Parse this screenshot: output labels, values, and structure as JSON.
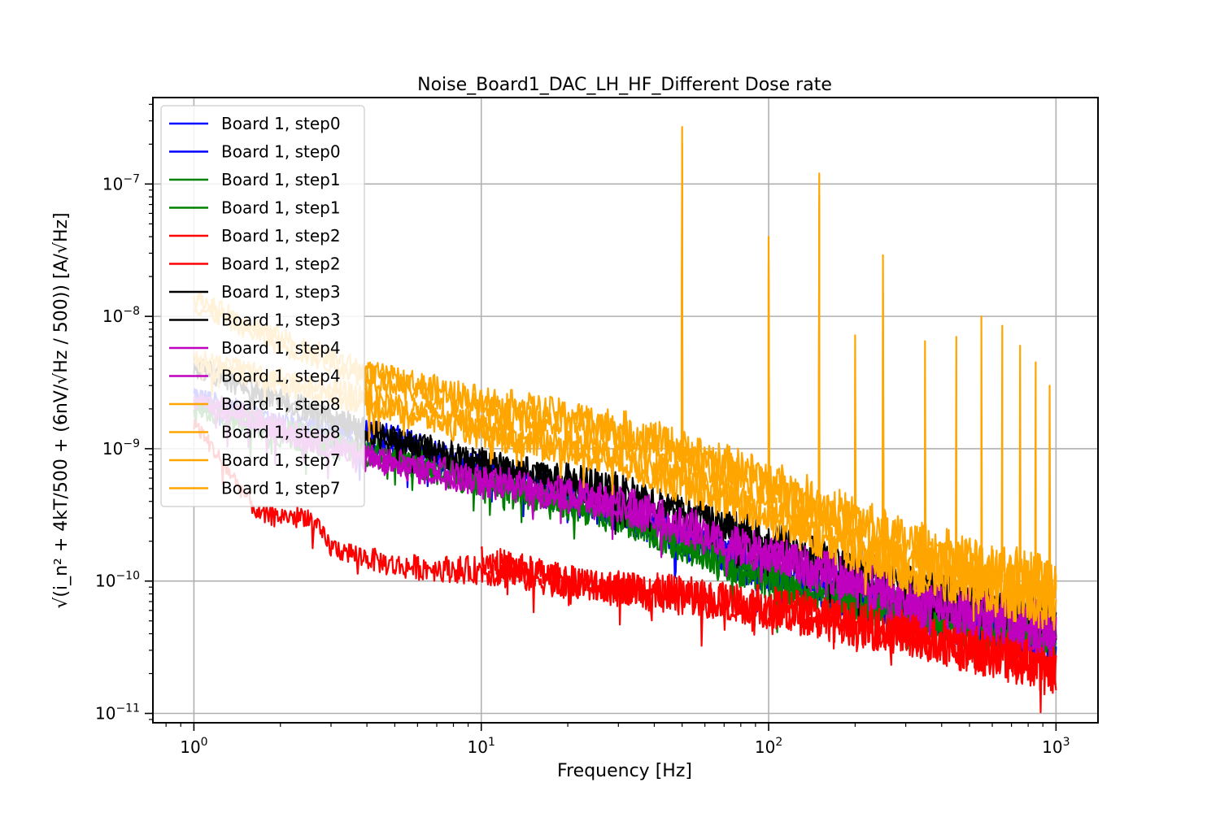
{
  "chart_data": {
    "type": "line",
    "title": "Noise_Board1_DAC_LH_HF_Different Dose rate",
    "xlabel": "Frequency [Hz]",
    "ylabel": "√(i_n² + 4kT/500 + (6nV/√Hz / 500)) [A/√Hz]",
    "x_scale": "log",
    "y_scale": "log",
    "xlim": [
      0.72,
      1400
    ],
    "ylim": [
      8.5e-12,
      4.5e-07
    ],
    "x_ticks": [
      {
        "value": 1,
        "base": "10",
        "exp": "0"
      },
      {
        "value": 10,
        "base": "10",
        "exp": "1"
      },
      {
        "value": 100,
        "base": "10",
        "exp": "2"
      },
      {
        "value": 1000,
        "base": "10",
        "exp": "3"
      }
    ],
    "y_ticks": [
      {
        "value": 1e-11,
        "base": "10",
        "exp": "−11"
      },
      {
        "value": 1e-10,
        "base": "10",
        "exp": "−10"
      },
      {
        "value": 1e-09,
        "base": "10",
        "exp": "−9"
      },
      {
        "value": 1e-08,
        "base": "10",
        "exp": "−8"
      },
      {
        "value": 1e-07,
        "base": "10",
        "exp": "−7"
      }
    ],
    "grid": true,
    "legend_position": "upper-left",
    "series": [
      {
        "name": "Board 1, step0",
        "color": "#0000ff",
        "levels": [
          [
            1,
            2.2e-09
          ],
          [
            2,
            1.4e-09
          ],
          [
            4,
            1.1e-09
          ],
          [
            10,
            6.5e-10
          ],
          [
            30,
            3.2e-10
          ],
          [
            100,
            1.1e-10
          ],
          [
            300,
            6e-11
          ],
          [
            1000,
            3.8e-11
          ]
        ],
        "spikes": []
      },
      {
        "name": "Board 1, step0",
        "color": "#0000ff",
        "levels": [
          [
            1,
            2.6e-09
          ],
          [
            2,
            1.6e-09
          ],
          [
            4.7,
            1.3e-09
          ],
          [
            10,
            7e-10
          ],
          [
            30,
            3.4e-10
          ],
          [
            100,
            1.2e-10
          ],
          [
            300,
            6.2e-11
          ],
          [
            1000,
            3.5e-11
          ]
        ],
        "spikes": []
      },
      {
        "name": "Board 1, step1",
        "color": "#008000",
        "levels": [
          [
            1,
            2e-09
          ],
          [
            2,
            1.2e-09
          ],
          [
            4,
            9e-10
          ],
          [
            10,
            5.5e-10
          ],
          [
            30,
            3e-10
          ],
          [
            100,
            1e-10
          ],
          [
            300,
            5.8e-11
          ],
          [
            1000,
            3.6e-11
          ]
        ],
        "spikes": []
      },
      {
        "name": "Board 1, step1",
        "color": "#008000",
        "levels": [
          [
            1,
            2.3e-09
          ],
          [
            2,
            1.5e-09
          ],
          [
            4,
            1e-09
          ],
          [
            10,
            6e-10
          ],
          [
            30,
            3.1e-10
          ],
          [
            100,
            1.05e-10
          ],
          [
            300,
            6e-11
          ],
          [
            1000,
            3.7e-11
          ]
        ],
        "spikes": []
      },
      {
        "name": "Board 1, step2",
        "color": "#ff0000",
        "levels": [
          [
            1,
            1.6e-09
          ],
          [
            1.7,
            3.1e-10
          ],
          [
            2.5,
            3.1e-10
          ],
          [
            3,
            1.8e-10
          ],
          [
            5,
            1.3e-10
          ],
          [
            10,
            1.2e-10
          ],
          [
            30,
            8.5e-11
          ],
          [
            100,
            6.5e-11
          ],
          [
            300,
            4.2e-11
          ],
          [
            1000,
            2.3e-11
          ]
        ],
        "spikes": []
      },
      {
        "name": "Board 1, step2",
        "color": "#ff0000",
        "levels": [
          [
            10,
            1.5e-10
          ],
          [
            20,
            1e-10
          ],
          [
            50,
            8e-11
          ],
          [
            100,
            6.2e-11
          ],
          [
            300,
            4e-11
          ],
          [
            1000,
            2.2e-11
          ]
        ],
        "spikes": []
      },
      {
        "name": "Board 1, step3",
        "color": "#000000",
        "levels": [
          [
            1,
            4.5e-09
          ],
          [
            2,
            2.5e-09
          ],
          [
            4,
            1.4e-09
          ],
          [
            10,
            8e-10
          ],
          [
            30,
            5e-10
          ],
          [
            100,
            2e-10
          ],
          [
            300,
            9e-11
          ],
          [
            1000,
            5.5e-11
          ]
        ],
        "spikes": []
      },
      {
        "name": "Board 1, step3",
        "color": "#000000",
        "levels": [
          [
            1,
            4e-09
          ],
          [
            2,
            2.2e-09
          ],
          [
            4,
            1.3e-09
          ],
          [
            10,
            7.5e-10
          ],
          [
            30,
            4.6e-10
          ],
          [
            100,
            1.8e-10
          ],
          [
            300,
            8.5e-11
          ],
          [
            1000,
            5e-11
          ]
        ],
        "spikes": []
      },
      {
        "name": "Board 1, step4",
        "color": "#bf00bf",
        "levels": [
          [
            1,
            2.6e-09
          ],
          [
            2,
            1.5e-09
          ],
          [
            4,
            9e-10
          ],
          [
            10,
            6e-10
          ],
          [
            30,
            4e-10
          ],
          [
            100,
            1.6e-10
          ],
          [
            300,
            7.5e-11
          ],
          [
            1000,
            4.5e-11
          ]
        ],
        "spikes": []
      },
      {
        "name": "Board 1, step4",
        "color": "#bf00bf",
        "levels": [
          [
            1,
            2.3e-09
          ],
          [
            2,
            1.3e-09
          ],
          [
            4,
            8e-10
          ],
          [
            10,
            5.5e-10
          ],
          [
            30,
            3.6e-10
          ],
          [
            100,
            1.5e-10
          ],
          [
            300,
            7e-11
          ],
          [
            1000,
            4.2e-11
          ]
        ],
        "spikes": []
      },
      {
        "name": "Board 1, step8",
        "color": "#ffa500",
        "levels": [
          [
            1,
            1.4e-08
          ],
          [
            2,
            7e-09
          ],
          [
            4,
            3.8e-09
          ],
          [
            10,
            2.4e-09
          ],
          [
            30,
            1.5e-09
          ],
          [
            100,
            6e-10
          ],
          [
            300,
            2e-10
          ],
          [
            1000,
            1e-10
          ]
        ],
        "spikes": [
          [
            50,
            2.7e-07
          ],
          [
            100,
            4e-08
          ],
          [
            150,
            1.2e-07
          ],
          [
            200,
            7.2e-09
          ],
          [
            250,
            2.9e-08
          ],
          [
            350,
            6.5e-09
          ],
          [
            450,
            7e-09
          ],
          [
            550,
            1e-08
          ],
          [
            650,
            8.5e-09
          ],
          [
            750,
            6e-09
          ],
          [
            850,
            4.5e-09
          ],
          [
            950,
            3e-09
          ]
        ]
      },
      {
        "name": "Board 1, step8",
        "color": "#ffa500",
        "levels": [
          [
            1,
            1.2e-08
          ],
          [
            2,
            6e-09
          ],
          [
            4,
            3.5e-09
          ],
          [
            10,
            2e-09
          ],
          [
            30,
            1.3e-09
          ],
          [
            100,
            5e-10
          ],
          [
            300,
            1.7e-10
          ],
          [
            1000,
            9e-11
          ]
        ],
        "spikes": [
          [
            50,
            2e-07
          ],
          [
            100,
            2.5e-08
          ],
          [
            150,
            8e-08
          ],
          [
            250,
            1.5e-08
          ]
        ]
      },
      {
        "name": "Board 1, step7",
        "color": "#ffa500",
        "levels": [
          [
            1,
            5e-09
          ],
          [
            2,
            3.5e-09
          ],
          [
            4,
            2.5e-09
          ],
          [
            10,
            1.5e-09
          ],
          [
            30,
            9e-10
          ],
          [
            100,
            3.5e-10
          ],
          [
            300,
            1.3e-10
          ],
          [
            1000,
            7e-11
          ]
        ],
        "spikes": [
          [
            50,
            1.2e-07
          ],
          [
            100,
            2e-08
          ],
          [
            150,
            3e-08
          ]
        ]
      },
      {
        "name": "Board 1, step7",
        "color": "#ffa500",
        "levels": [
          [
            1,
            4.5e-09
          ],
          [
            2,
            3e-09
          ],
          [
            4,
            2.2e-09
          ],
          [
            10,
            1.3e-09
          ],
          [
            30,
            8e-10
          ],
          [
            100,
            3e-10
          ],
          [
            300,
            1.2e-10
          ],
          [
            1000,
            6.5e-11
          ]
        ],
        "spikes": [
          [
            50,
            8e-08
          ],
          [
            100,
            1e-08
          ]
        ]
      }
    ]
  }
}
